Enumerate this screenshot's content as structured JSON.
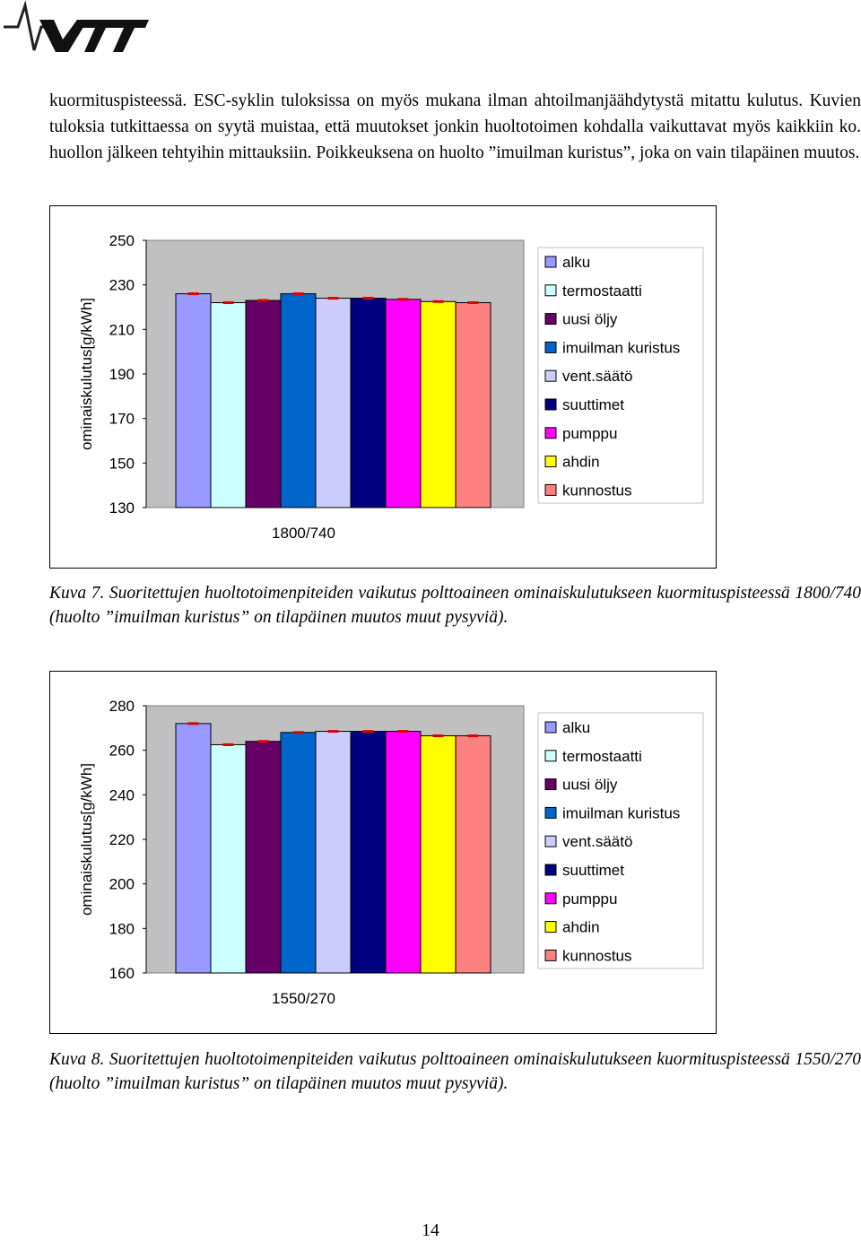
{
  "header": {
    "logo_text": "VTT"
  },
  "body_text": "kuormituspisteessä. ESC-syklin tuloksissa on myös mukana ilman ahtoilmanjäähdytystä mitattu kulutus. Kuvien tuloksia tutkittaessa on syytä muistaa, että muutokset jonkin huoltotoimen kohdalla vaikuttavat myös kaikkiin ko. huollon jälkeen tehtyihin mittauksiin. Poikkeuksena on huolto ”imuilman kuristus”, joka on vain tilapäinen muutos.",
  "chart_data": [
    {
      "type": "bar",
      "ylabel": "ominaiskulutus[g/kWh]",
      "category_label": "1800/740",
      "ylim": [
        130,
        250
      ],
      "yticks": [
        130,
        150,
        170,
        190,
        210,
        230,
        250
      ],
      "grid": false,
      "legend_position": "right",
      "series": [
        {
          "name": "alku",
          "value": 226,
          "color": "#9999ff"
        },
        {
          "name": "termostaatti",
          "value": 222,
          "color": "#ccffff"
        },
        {
          "name": "uusi öljy",
          "value": 223,
          "color": "#660066"
        },
        {
          "name": "imuilman kuristus",
          "value": 226,
          "color": "#0066cc"
        },
        {
          "name": "vent.säätö",
          "value": 224,
          "color": "#ccccff"
        },
        {
          "name": "suuttimet",
          "value": 224,
          "color": "#000080"
        },
        {
          "name": "pumppu",
          "value": 223.5,
          "color": "#ff00ff"
        },
        {
          "name": "ahdin",
          "value": 222.5,
          "color": "#ffff00"
        },
        {
          "name": "kunnostus",
          "value": 222,
          "color": "#ff8080"
        }
      ]
    },
    {
      "type": "bar",
      "ylabel": "ominaiskulutus[g/kWh]",
      "category_label": "1550/270",
      "ylim": [
        160,
        280
      ],
      "yticks": [
        160,
        180,
        200,
        220,
        240,
        260,
        280
      ],
      "grid": false,
      "legend_position": "right",
      "series": [
        {
          "name": "alku",
          "value": 272,
          "color": "#9999ff"
        },
        {
          "name": "termostaatti",
          "value": 262.5,
          "color": "#ccffff"
        },
        {
          "name": "uusi öljy",
          "value": 264,
          "color": "#660066"
        },
        {
          "name": "imuilman kuristus",
          "value": 268,
          "color": "#0066cc"
        },
        {
          "name": "vent.säätö",
          "value": 268.5,
          "color": "#ccccff"
        },
        {
          "name": "suuttimet",
          "value": 268.5,
          "color": "#000080"
        },
        {
          "name": "pumppu",
          "value": 268.5,
          "color": "#ff00ff"
        },
        {
          "name": "ahdin",
          "value": 266.5,
          "color": "#ffff00"
        },
        {
          "name": "kunnostus",
          "value": 266.5,
          "color": "#ff8080"
        }
      ]
    }
  ],
  "captions": [
    "Kuva 7. Suoritettujen huoltotoimenpiteiden vaikutus polttoaineen ominaiskulutukseen kuormituspisteessä 1800/740 (huolto ”imuilman kuristus” on tilapäinen muutos muut pysyviä).",
    "Kuva 8. Suoritettujen huoltotoimenpiteiden vaikutus polttoaineen ominaiskulutukseen kuormituspisteessä 1550/270 (huolto ”imuilman kuristus” on tilapäinen muutos muut pysyviä)."
  ],
  "page_number": "14"
}
